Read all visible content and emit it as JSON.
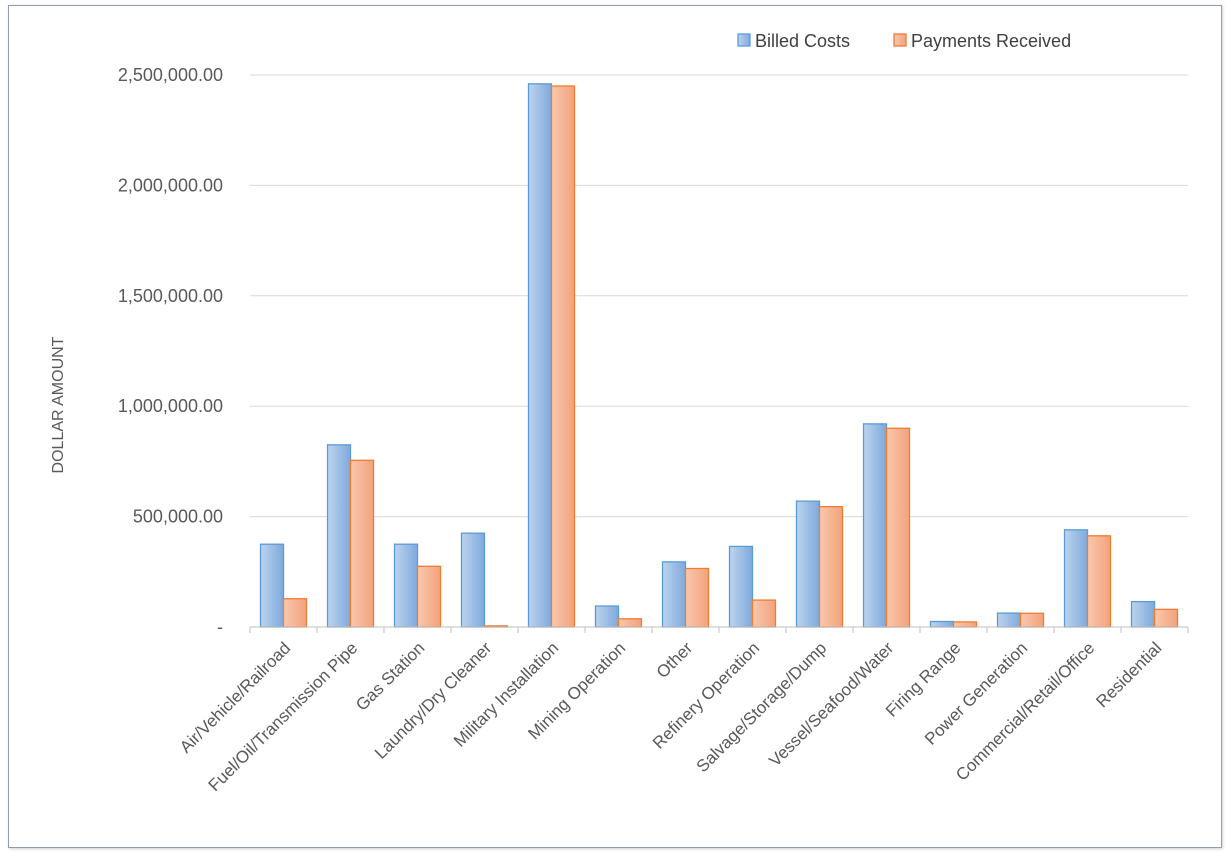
{
  "chart_data": {
    "type": "bar",
    "title": "",
    "xlabel": "",
    "ylabel": "DOLLAR AMOUNT",
    "ylim": [
      0,
      2500000
    ],
    "y_ticks": [
      "-",
      "500,000.00",
      "1,000,000.00",
      "1,500,000.00",
      "2,000,000.00",
      "2,500,000.00"
    ],
    "grid": true,
    "legend_position": "top-right",
    "categories": [
      "Air/Vehicle/Railroad",
      "Fuel/Oil/Transmission Pipe",
      "Gas Station",
      "Laundry/Dry Cleaner",
      "Military Installation",
      "Mining Operation",
      "Other",
      "Refinery Operation",
      "Salvage/Storage/Dump",
      "Vessel/Seafood/Water",
      "Firing Range",
      "Power Generation",
      "Commercial/Retail/Office",
      "Residential"
    ],
    "series": [
      {
        "name": "Billed Costs",
        "color": "#5b9bd5",
        "values": [
          375000,
          825000,
          375000,
          425000,
          2460000,
          95000,
          295000,
          365000,
          570000,
          920000,
          25000,
          63000,
          440000,
          115000
        ]
      },
      {
        "name": "Payments Received",
        "color": "#ed7d31",
        "values": [
          128000,
          755000,
          275000,
          5000,
          2450000,
          37000,
          265000,
          122000,
          545000,
          900000,
          23000,
          62000,
          413000,
          80000
        ]
      }
    ]
  }
}
